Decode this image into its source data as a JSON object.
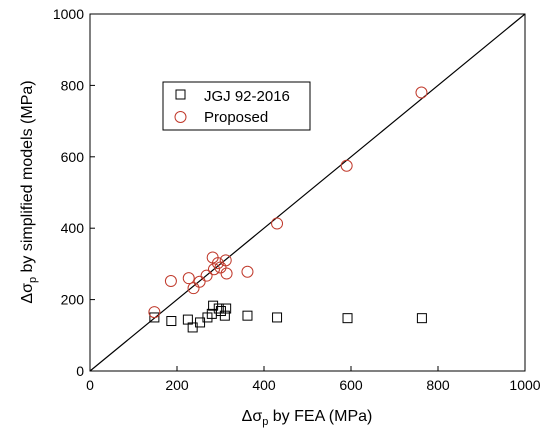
{
  "chart_data": {
    "type": "scatter",
    "xlabel": {
      "main": "Δσ",
      "sub": "p",
      "rest": " by FEA (MPa)"
    },
    "ylabel": {
      "main": "Δσ",
      "sub": "p",
      "rest": " by simplified models (MPa)"
    },
    "xlim": [
      0,
      1000
    ],
    "ylim": [
      0,
      1000
    ],
    "xticks": [
      0,
      200,
      400,
      600,
      800,
      1000
    ],
    "yticks": [
      0,
      200,
      400,
      600,
      800,
      1000
    ],
    "xtick_labels": [
      "0",
      "200",
      "400",
      "600",
      "800",
      "1000"
    ],
    "ytick_labels": [
      "0",
      "200",
      "400",
      "600",
      "800",
      "1000"
    ],
    "grid": false,
    "legend_position": "upper-left",
    "reference_line": {
      "from": [
        0,
        0
      ],
      "to": [
        1000,
        1000
      ]
    },
    "series": [
      {
        "name": "JGJ 92-2016",
        "marker": "open-square",
        "color": "#000000",
        "points": [
          [
            148,
            150
          ],
          [
            187,
            140
          ],
          [
            225,
            144
          ],
          [
            236,
            122
          ],
          [
            253,
            136
          ],
          [
            270,
            150
          ],
          [
            280,
            160
          ],
          [
            283,
            183
          ],
          [
            296,
            175
          ],
          [
            301,
            168
          ],
          [
            310,
            155
          ],
          [
            313,
            175
          ],
          [
            362,
            155
          ],
          [
            430,
            150
          ],
          [
            592,
            148
          ],
          [
            763,
            148
          ]
        ]
      },
      {
        "name": "Proposed",
        "marker": "open-circle",
        "color": "#c0392b",
        "points": [
          [
            148,
            165
          ],
          [
            186,
            252
          ],
          [
            227,
            260
          ],
          [
            238,
            232
          ],
          [
            252,
            250
          ],
          [
            268,
            267
          ],
          [
            282,
            318
          ],
          [
            285,
            285
          ],
          [
            294,
            302
          ],
          [
            300,
            290
          ],
          [
            312,
            310
          ],
          [
            314,
            273
          ],
          [
            362,
            278
          ],
          [
            430,
            413
          ],
          [
            590,
            575
          ],
          [
            762,
            780
          ]
        ]
      }
    ]
  }
}
